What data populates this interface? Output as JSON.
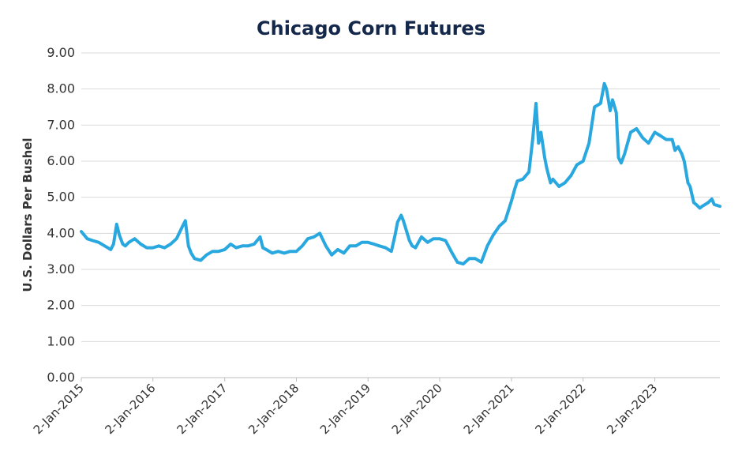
{
  "chart_data": {
    "type": "line",
    "title": "Chicago Corn Futures",
    "xlabel": "",
    "ylabel": "U.S. Dollars Per Bushel",
    "ylim": [
      0,
      9
    ],
    "y_ticks": [
      "0.00",
      "1.00",
      "2.00",
      "3.00",
      "4.00",
      "5.00",
      "6.00",
      "7.00",
      "8.00",
      "9.00"
    ],
    "x_ticks": [
      "2-Jan-2015",
      "2-Jan-2016",
      "2-Jan-2017",
      "2-Jan-2018",
      "2-Jan-2019",
      "2-Jan-2020",
      "2-Jan-2021",
      "2-Jan-2022",
      "2-Jan-2023"
    ],
    "x_range": [
      "2015-01-02",
      "2023-11-30"
    ],
    "grid": "horizontal",
    "line_color": "#29a8e0",
    "series": [
      {
        "x": [
          "2015-01-02",
          "2015-02-01",
          "2015-03-01",
          "2015-04-01",
          "2015-05-01",
          "2015-06-01",
          "2015-06-15",
          "2015-07-01",
          "2015-07-15",
          "2015-08-01",
          "2015-08-15",
          "2015-09-01",
          "2015-10-01",
          "2015-11-01",
          "2015-12-01",
          "2016-01-02",
          "2016-02-01",
          "2016-03-01",
          "2016-04-01",
          "2016-05-01",
          "2016-06-01",
          "2016-06-15",
          "2016-07-01",
          "2016-07-15",
          "2016-08-01",
          "2016-09-01",
          "2016-10-01",
          "2016-11-01",
          "2016-12-01",
          "2017-01-02",
          "2017-02-01",
          "2017-03-01",
          "2017-04-01",
          "2017-05-01",
          "2017-06-01",
          "2017-07-01",
          "2017-07-15",
          "2017-08-01",
          "2017-09-01",
          "2017-10-01",
          "2017-11-01",
          "2017-12-01",
          "2018-01-02",
          "2018-02-01",
          "2018-03-01",
          "2018-04-01",
          "2018-05-01",
          "2018-06-01",
          "2018-07-01",
          "2018-08-01",
          "2018-09-01",
          "2018-10-01",
          "2018-11-01",
          "2018-12-01",
          "2019-01-02",
          "2019-02-01",
          "2019-03-01",
          "2019-04-01",
          "2019-05-01",
          "2019-05-20",
          "2019-06-01",
          "2019-06-20",
          "2019-07-01",
          "2019-08-01",
          "2019-08-15",
          "2019-09-01",
          "2019-10-01",
          "2019-11-01",
          "2019-12-01",
          "2020-01-02",
          "2020-02-01",
          "2020-03-01",
          "2020-04-01",
          "2020-05-01",
          "2020-06-01",
          "2020-07-01",
          "2020-08-01",
          "2020-09-01",
          "2020-10-01",
          "2020-11-01",
          "2020-12-01",
          "2021-01-02",
          "2021-01-20",
          "2021-02-01",
          "2021-03-01",
          "2021-04-01",
          "2021-04-20",
          "2021-05-07",
          "2021-05-20",
          "2021-06-01",
          "2021-06-20",
          "2021-07-01",
          "2021-07-20",
          "2021-08-01",
          "2021-09-01",
          "2021-10-01",
          "2021-11-01",
          "2021-12-01",
          "2022-01-02",
          "2022-02-01",
          "2022-03-01",
          "2022-04-01",
          "2022-04-20",
          "2022-05-01",
          "2022-05-20",
          "2022-06-01",
          "2022-06-20",
          "2022-07-01",
          "2022-07-15",
          "2022-08-01",
          "2022-09-01",
          "2022-10-01",
          "2022-11-01",
          "2022-12-01",
          "2023-01-02",
          "2023-02-01",
          "2023-03-01",
          "2023-04-01",
          "2023-04-15",
          "2023-05-01",
          "2023-05-20",
          "2023-06-01",
          "2023-06-20",
          "2023-07-01",
          "2023-07-20",
          "2023-08-01",
          "2023-08-20",
          "2023-09-01",
          "2023-10-01",
          "2023-10-20",
          "2023-11-01",
          "2023-11-30"
        ],
        "y": [
          4.05,
          3.85,
          3.8,
          3.75,
          3.65,
          3.55,
          3.7,
          4.25,
          3.95,
          3.7,
          3.65,
          3.75,
          3.85,
          3.7,
          3.6,
          3.6,
          3.65,
          3.6,
          3.7,
          3.85,
          4.2,
          4.35,
          3.65,
          3.45,
          3.3,
          3.25,
          3.4,
          3.5,
          3.5,
          3.55,
          3.7,
          3.6,
          3.65,
          3.65,
          3.7,
          3.9,
          3.6,
          3.55,
          3.45,
          3.5,
          3.45,
          3.5,
          3.5,
          3.65,
          3.85,
          3.9,
          4.0,
          3.65,
          3.4,
          3.55,
          3.45,
          3.65,
          3.65,
          3.75,
          3.75,
          3.7,
          3.65,
          3.6,
          3.5,
          3.95,
          4.3,
          4.5,
          4.35,
          3.8,
          3.65,
          3.6,
          3.9,
          3.75,
          3.85,
          3.85,
          3.8,
          3.5,
          3.2,
          3.15,
          3.3,
          3.3,
          3.2,
          3.65,
          3.95,
          4.2,
          4.35,
          4.9,
          5.25,
          5.45,
          5.5,
          5.7,
          6.6,
          7.6,
          6.5,
          6.8,
          6.1,
          5.8,
          5.4,
          5.5,
          5.3,
          5.4,
          5.6,
          5.9,
          6.0,
          6.5,
          7.5,
          7.6,
          8.15,
          8.0,
          7.4,
          7.7,
          7.35,
          6.1,
          5.95,
          6.2,
          6.8,
          6.9,
          6.65,
          6.5,
          6.8,
          6.7,
          6.6,
          6.6,
          6.3,
          6.4,
          6.2,
          6.0,
          5.4,
          5.3,
          4.85,
          4.8,
          4.7,
          4.75,
          4.85,
          4.95,
          4.8,
          4.75
        ]
      }
    ]
  }
}
